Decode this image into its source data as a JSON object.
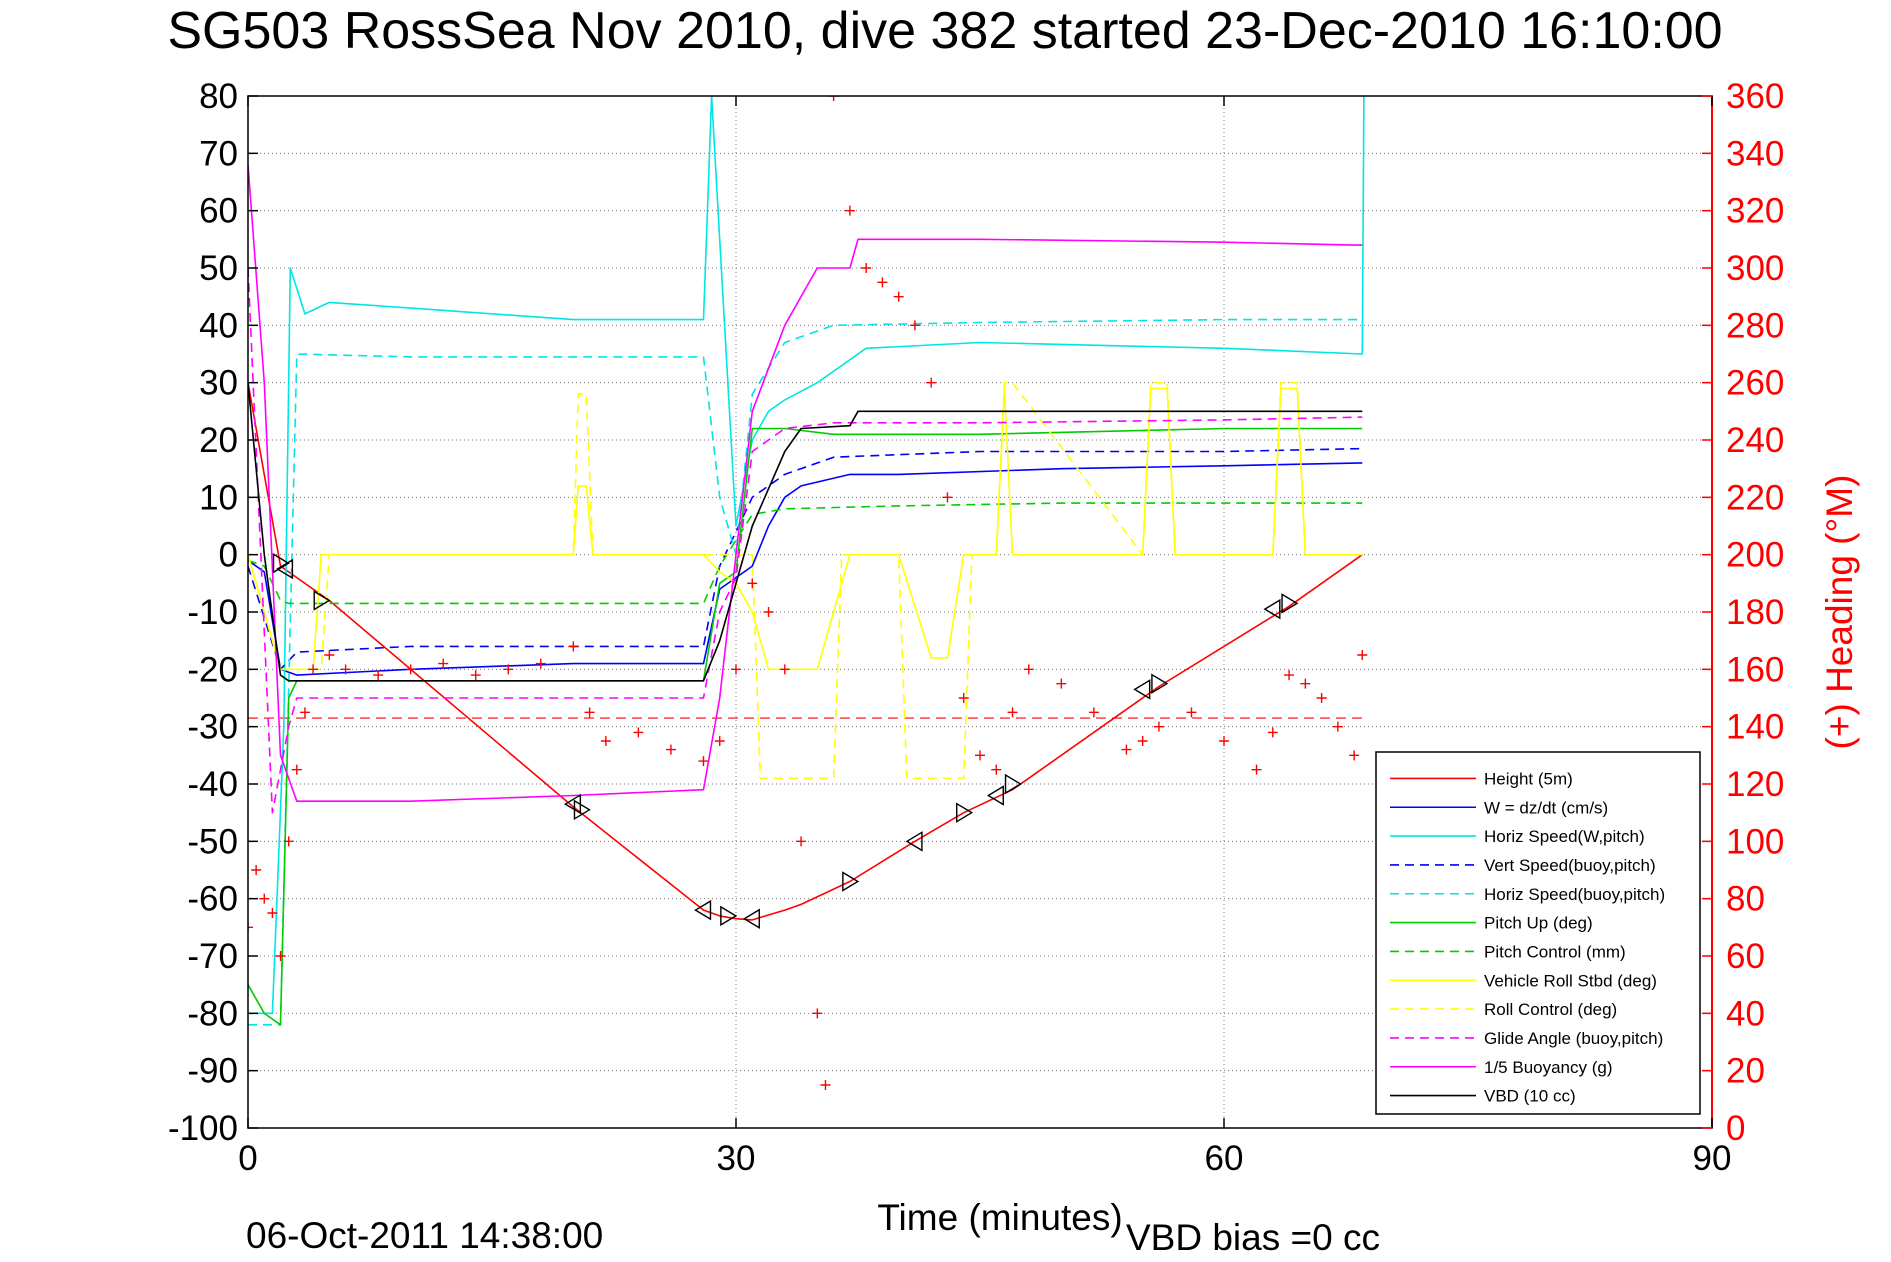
{
  "chart_data": {
    "type": "line",
    "title": "SG503 RossSea Nov 2010, dive 382 started 23-Dec-2010 16:10:00",
    "xlabel": "Time (minutes)",
    "ylabel_right": "(+) Heading (°M)",
    "footer_left": "06-Oct-2011 14:38:00",
    "footer_right": "VBD bias =0 cc",
    "xlim": [
      0,
      90
    ],
    "ylim": [
      -100,
      80
    ],
    "y2lim": [
      0,
      360
    ],
    "grid": true,
    "legend_position": "bottom-right",
    "x_ticks": [
      "0",
      "30",
      "60",
      "90"
    ],
    "y_ticks": [
      "80",
      "70",
      "60",
      "50",
      "40",
      "30",
      "20",
      "10",
      "0",
      "-10",
      "-20",
      "-30",
      "-40",
      "-50",
      "-60",
      "-70",
      "-80",
      "-90",
      "-100"
    ],
    "y2_ticks": [
      "360",
      "340",
      "320",
      "300",
      "280",
      "260",
      "240",
      "220",
      "200",
      "180",
      "160",
      "140",
      "120",
      "100",
      "80",
      "60",
      "40",
      "20",
      "0"
    ],
    "series": [
      {
        "name": "Height (5m)",
        "color": "#ff0000",
        "dash": "solid",
        "x": [
          0,
          2,
          5,
          20,
          28,
          29,
          30,
          31,
          33,
          34,
          37,
          41,
          44,
          47,
          56,
          64,
          68.5
        ],
        "y": [
          30,
          -2,
          -8,
          -44,
          -62,
          -63,
          -63.5,
          -63.7,
          -62,
          -61,
          -57,
          -50,
          -45,
          -41,
          -23,
          -9,
          0
        ]
      },
      {
        "name": "W = dz/dt (cm/s)",
        "color": "#0000ff",
        "dash": "solid",
        "x": [
          0,
          1,
          2,
          3,
          10,
          20,
          28,
          29,
          30,
          31,
          32,
          33,
          34,
          37,
          40,
          50,
          60,
          68.5
        ],
        "y": [
          -1,
          -3,
          -20,
          -21,
          -20,
          -19,
          -19,
          -6,
          -4,
          -2,
          5,
          10,
          12,
          14,
          14,
          15,
          15.5,
          16
        ]
      },
      {
        "name": "Horiz Speed(W,pitch)",
        "color": "#00e5e5",
        "dash": "solid",
        "x": [
          0,
          1.5,
          2.2,
          2.6,
          3.5,
          5,
          10,
          20,
          28,
          28.5,
          29,
          30,
          31,
          32,
          33,
          35,
          38,
          45,
          60,
          68.5,
          68.6
        ],
        "y": [
          -80,
          -80,
          -30,
          50,
          42,
          44,
          43,
          41,
          41,
          80,
          55,
          5,
          20,
          25,
          27,
          30,
          36,
          37,
          36,
          35,
          80
        ]
      },
      {
        "name": "Vert Speed(buoy,pitch)",
        "color": "#0000ff",
        "dash": "dashed",
        "x": [
          0,
          2,
          3,
          10,
          20,
          28,
          29,
          31,
          33,
          36,
          45,
          60,
          68.5
        ],
        "y": [
          -2,
          -20,
          -17,
          -16,
          -16,
          -16,
          -2,
          10,
          14,
          17,
          18,
          18,
          18.5
        ]
      },
      {
        "name": "Horiz Speed(buoy,pitch)",
        "color": "#00e5e5",
        "dash": "dashed",
        "x": [
          0,
          2,
          3,
          10,
          20,
          28,
          29,
          30,
          31,
          33,
          36,
          45,
          60,
          68.5
        ],
        "y": [
          -82,
          -82,
          35,
          34.5,
          34.5,
          34.5,
          10,
          0,
          28,
          37,
          40,
          40.5,
          41,
          41
        ]
      },
      {
        "name": "Pitch Up (deg)",
        "color": "#00cc00",
        "dash": "solid",
        "x": [
          0,
          1,
          2,
          2.5,
          3,
          10,
          20,
          28,
          29,
          30,
          31,
          33,
          36,
          45,
          60,
          68.5
        ],
        "y": [
          -75,
          -80,
          -82,
          -25,
          -22,
          -22,
          -22,
          -22,
          -5,
          -3,
          22,
          22,
          21,
          21,
          22,
          22
        ]
      },
      {
        "name": "Pitch Control (mm)",
        "color": "#00cc00",
        "dash": "dashed",
        "x": [
          0,
          1,
          2,
          2.5,
          10,
          20,
          28,
          29,
          31,
          33,
          40,
          50,
          60,
          68.5
        ],
        "y": [
          -1,
          -2,
          -8,
          -8.5,
          -8.5,
          -8.5,
          -8.5,
          -2,
          7,
          8,
          8.5,
          9,
          9,
          9
        ]
      },
      {
        "name": "Vehicle Roll Stbd (deg)",
        "color": "#ffff00",
        "dash": "solid",
        "x": [
          0,
          2,
          4,
          4.5,
          20,
          20.3,
          20.8,
          21.2,
          28,
          29,
          30,
          31,
          32,
          35,
          37,
          40,
          42,
          43,
          44,
          45,
          46,
          46.5,
          47,
          55,
          55.5,
          56.5,
          57,
          63,
          63.5,
          64.5,
          65,
          68.5
        ],
        "y": [
          0,
          -20,
          -20,
          0,
          0,
          12,
          12,
          0,
          0,
          -3,
          -5,
          -10,
          -20,
          -20,
          0,
          0,
          -18,
          -18,
          0,
          0,
          0,
          29,
          0,
          0,
          29,
          29,
          0,
          0,
          29,
          29,
          0,
          0
        ]
      },
      {
        "name": "Roll Control (deg)",
        "color": "#ffff00",
        "dash": "dashed",
        "x": [
          0,
          2,
          4.5,
          5,
          20,
          20.3,
          20.8,
          21.2,
          28,
          29,
          31,
          31.5,
          36,
          36.5,
          40,
          40.5,
          44,
          44.5,
          46,
          46.5,
          47,
          55,
          55.5,
          56.5,
          57,
          63,
          63.5,
          64.5,
          65,
          68.5
        ],
        "y": [
          0,
          -20,
          -20,
          0,
          0,
          28,
          28,
          0,
          0,
          0,
          0,
          -39,
          -39,
          0,
          0,
          -39,
          -39,
          0,
          0,
          30,
          30,
          0,
          30,
          30,
          0,
          0,
          30,
          30,
          0,
          0
        ]
      },
      {
        "name": "Glide Angle (buoy,pitch)",
        "color": "#ff00ff",
        "dash": "dashed",
        "x": [
          0,
          1.5,
          2.5,
          3,
          10,
          20,
          28,
          29,
          30,
          31,
          33,
          36,
          45,
          60,
          68.5
        ],
        "y": [
          50,
          -45,
          -30,
          -25,
          -25,
          -25,
          -25,
          -10,
          -4,
          18,
          22,
          23,
          23,
          23.5,
          24
        ]
      },
      {
        "name": "1/5 Buoyancy (g)",
        "color": "#ff00ff",
        "dash": "solid",
        "x": [
          0,
          1,
          2,
          3,
          10,
          20,
          28,
          29,
          30,
          31,
          33,
          35,
          37,
          37.5,
          45,
          60,
          68,
          68.5
        ],
        "y": [
          68,
          30,
          -35,
          -43,
          -43,
          -42,
          -41,
          -25,
          0,
          25,
          40,
          50,
          50,
          55,
          55,
          54.5,
          54,
          54
        ]
      },
      {
        "name": "VBD (10 cc)",
        "color": "#000000",
        "dash": "solid",
        "x": [
          0,
          1,
          2,
          2.5,
          20,
          28,
          29,
          31,
          33,
          34,
          37,
          37.5,
          68.5
        ],
        "y": [
          30,
          0,
          -21,
          -22,
          -22,
          -22,
          -15,
          5,
          18,
          22,
          22.5,
          25,
          25
        ]
      }
    ],
    "heading": {
      "name": "Heading",
      "axis": "right",
      "color": "#ff0000",
      "marker": "+",
      "target": 143,
      "x": [
        0,
        0.5,
        1,
        1.5,
        2,
        2.5,
        3,
        3.5,
        4,
        5,
        6,
        8,
        10,
        12,
        14,
        16,
        18,
        20,
        21,
        22,
        24,
        26,
        28,
        29,
        30,
        31,
        32,
        33,
        34,
        35,
        35.5,
        36,
        37,
        38,
        39,
        40,
        41,
        42,
        43,
        44,
        45,
        46,
        47,
        48,
        50,
        52,
        54,
        55,
        56,
        58,
        60,
        62,
        63,
        64,
        65,
        66,
        67,
        68,
        68.5
      ],
      "y": [
        70,
        90,
        80,
        75,
        60,
        100,
        125,
        145,
        160,
        165,
        160,
        158,
        160,
        162,
        158,
        160,
        162,
        168,
        145,
        135,
        138,
        132,
        128,
        135,
        160,
        190,
        180,
        160,
        100,
        40,
        15,
        360,
        320,
        300,
        295,
        290,
        280,
        260,
        220,
        150,
        130,
        125,
        145,
        160,
        155,
        145,
        132,
        135,
        140,
        145,
        135,
        125,
        138,
        158,
        155,
        150,
        140,
        130,
        165
      ]
    },
    "markers": {
      "name": "Height markers",
      "color": "#000000",
      "x": [
        2,
        2.3,
        4.5,
        20,
        20.5,
        28,
        29.5,
        31,
        37,
        41,
        44,
        46,
        47,
        55,
        56,
        63,
        64
      ],
      "y": [
        -1.5,
        -2.5,
        -8,
        -43.5,
        -44.5,
        -62,
        -63,
        -63.5,
        -57,
        -50,
        -45,
        -42,
        -40,
        -23.5,
        -22.5,
        -9.5,
        -8.5
      ]
    }
  }
}
